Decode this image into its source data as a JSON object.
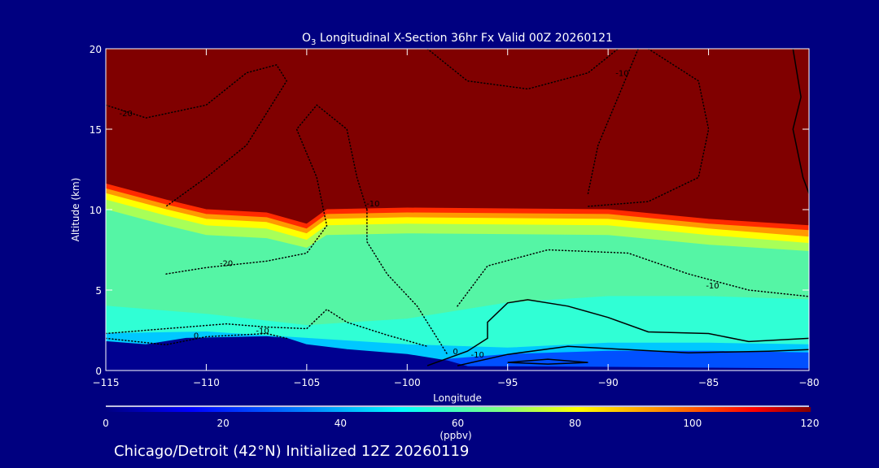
{
  "chart_data": {
    "type": "heatmap",
    "title_prefix": "O",
    "title_sub": "3",
    "title_rest": " Longitudinal X-Section 36hr  Fx Valid 00Z 20260121",
    "xlabel": "Longitude",
    "ylabel": "Altitude (km)",
    "xlim": [
      -115,
      -80
    ],
    "ylim": [
      0,
      20
    ],
    "xticks": [
      -115,
      -110,
      -105,
      -100,
      -95,
      -90,
      -85,
      -80
    ],
    "xtick_labels": [
      "−115",
      "−110",
      "−105",
      "−100",
      "−95",
      "−90",
      "−85",
      "−80"
    ],
    "yticks": [
      0,
      5,
      10,
      15,
      20
    ],
    "ytick_labels": [
      "0",
      "5",
      "10",
      "15",
      "20"
    ],
    "colorbar": {
      "label": "(ppbv)",
      "range": [
        0,
        120
      ],
      "ticks": [
        "0",
        "20",
        "40",
        "60",
        "80",
        "100",
        "120"
      ]
    },
    "footer": "Chicago/Detroit (42°N) Initialized 12Z 20260119",
    "background_color": "#800000",
    "layers": [
      {
        "color": "#ff2a00",
        "top": [
          [
            -115,
            11.6
          ],
          [
            -112,
            10.6
          ],
          [
            -110,
            10.0
          ],
          [
            -107,
            9.8
          ],
          [
            -105,
            9.1
          ],
          [
            -104,
            10.0
          ],
          [
            -100,
            10.1
          ],
          [
            -90,
            10.0
          ],
          [
            -85,
            9.4
          ],
          [
            -80,
            9.0
          ]
        ]
      },
      {
        "color": "#ff9a00",
        "top": [
          [
            -115,
            11.3
          ],
          [
            -112,
            10.3
          ],
          [
            -110,
            9.7
          ],
          [
            -107,
            9.5
          ],
          [
            -105,
            8.8
          ],
          [
            -104,
            9.7
          ],
          [
            -100,
            9.8
          ],
          [
            -90,
            9.7
          ],
          [
            -85,
            9.1
          ],
          [
            -80,
            8.7
          ]
        ]
      },
      {
        "color": "#ffff00",
        "top": [
          [
            -115,
            11.0
          ],
          [
            -112,
            10.0
          ],
          [
            -110,
            9.4
          ],
          [
            -107,
            9.2
          ],
          [
            -105,
            8.5
          ],
          [
            -104,
            9.4
          ],
          [
            -100,
            9.5
          ],
          [
            -90,
            9.4
          ],
          [
            -85,
            8.8
          ],
          [
            -80,
            8.3
          ]
        ]
      },
      {
        "color": "#a8ff58",
        "top": [
          [
            -115,
            10.6
          ],
          [
            -112,
            9.6
          ],
          [
            -110,
            9.0
          ],
          [
            -107,
            8.8
          ],
          [
            -105,
            8.1
          ],
          [
            -104,
            9.0
          ],
          [
            -100,
            9.1
          ],
          [
            -90,
            9.0
          ],
          [
            -85,
            8.4
          ],
          [
            -80,
            7.9
          ]
        ]
      },
      {
        "color": "#55f5a5",
        "top": [
          [
            -115,
            10.0
          ],
          [
            -112,
            9.0
          ],
          [
            -110,
            8.4
          ],
          [
            -107,
            8.2
          ],
          [
            -105,
            7.6
          ],
          [
            -104,
            8.4
          ],
          [
            -100,
            8.5
          ],
          [
            -90,
            8.4
          ],
          [
            -85,
            7.8
          ],
          [
            -80,
            7.4
          ]
        ]
      },
      {
        "color": "#30ffd5",
        "top": [
          [
            -115,
            4.0
          ],
          [
            -110,
            3.5
          ],
          [
            -105,
            2.8
          ],
          [
            -100,
            3.2
          ],
          [
            -95,
            4.2
          ],
          [
            -90,
            4.6
          ],
          [
            -85,
            4.6
          ],
          [
            -80,
            4.4
          ]
        ]
      },
      {
        "color": "#00c8ff",
        "top": [
          [
            -115,
            2.3
          ],
          [
            -110,
            2.4
          ],
          [
            -105,
            2.0
          ],
          [
            -100,
            1.6
          ],
          [
            -95,
            1.4
          ],
          [
            -90,
            1.7
          ],
          [
            -85,
            1.7
          ],
          [
            -80,
            1.6
          ]
        ]
      },
      {
        "color": "#0050ff",
        "top": [
          [
            -115,
            0
          ],
          [
            -100,
            0
          ],
          [
            -98,
            0.7
          ],
          [
            -95,
            1.0
          ],
          [
            -90,
            1.2
          ],
          [
            -85,
            1.2
          ],
          [
            -80,
            1.1
          ]
        ]
      },
      {
        "color": "#000090",
        "top": [
          [
            -115,
            1.8
          ],
          [
            -113,
            1.6
          ],
          [
            -111,
            2.0
          ],
          [
            -107,
            2.1
          ],
          [
            -106,
            2.0
          ],
          [
            -105,
            1.6
          ],
          [
            -103,
            1.3
          ],
          [
            -100,
            1.0
          ],
          [
            -98,
            0.6
          ],
          [
            -97,
            0.25
          ],
          [
            -90,
            0.2
          ],
          [
            -80,
            0.1
          ]
        ]
      }
    ],
    "contours": [
      {
        "label": "-20",
        "style": "dotted",
        "label_at": [
          -114,
          15.8
        ],
        "points": [
          [
            -115,
            16.5
          ],
          [
            -113,
            15.7
          ],
          [
            -110,
            16.5
          ],
          [
            -108,
            18.5
          ],
          [
            -106.5,
            19
          ],
          [
            -106,
            18
          ],
          [
            -107,
            16
          ],
          [
            -108,
            14
          ],
          [
            -110,
            12
          ],
          [
            -112,
            10.2
          ]
        ]
      },
      {
        "label": "-20",
        "style": "dotted",
        "label_at": [
          -109,
          6.5
        ],
        "points": [
          [
            -112,
            6.0
          ],
          [
            -110,
            6.4
          ],
          [
            -107,
            6.8
          ],
          [
            -105,
            7.3
          ],
          [
            -104,
            9.0
          ],
          [
            -104.5,
            12
          ],
          [
            -105.5,
            15
          ],
          [
            -104.5,
            16.5
          ],
          [
            -103,
            15
          ],
          [
            -102.5,
            12
          ],
          [
            -102,
            10
          ]
        ]
      },
      {
        "label": "-10",
        "style": "dotted",
        "label_at": [
          -101.7,
          10.2
        ],
        "points": [
          [
            -102,
            10
          ],
          [
            -102,
            8
          ],
          [
            -101,
            6
          ],
          [
            -99.5,
            4
          ],
          [
            -98.5,
            2
          ],
          [
            -98,
            1
          ]
        ]
      },
      {
        "label": "-10",
        "style": "dotted",
        "label_at": [
          -89.3,
          18.3
        ],
        "points": [
          [
            -91,
            11
          ],
          [
            -90.5,
            14
          ],
          [
            -89.5,
            17
          ],
          [
            -88.5,
            20
          ]
        ]
      },
      {
        "label": "",
        "style": "dotted",
        "label_at": [
          -95,
          18
        ],
        "points": [
          [
            -99,
            20
          ],
          [
            -97,
            18
          ],
          [
            -94,
            17.5
          ],
          [
            -91,
            18.5
          ],
          [
            -89.5,
            20
          ]
        ]
      },
      {
        "label": "",
        "style": "dotted",
        "label_at": [
          -85,
          16
        ],
        "points": [
          [
            -88,
            20
          ],
          [
            -85.5,
            18
          ],
          [
            -85,
            15
          ],
          [
            -85.5,
            12
          ],
          [
            -88,
            10.5
          ],
          [
            -91,
            10.2
          ]
        ]
      },
      {
        "label": "-10",
        "style": "dotted",
        "label_at": [
          -84.8,
          5.1
        ],
        "points": [
          [
            -97.5,
            4
          ],
          [
            -96,
            6.5
          ],
          [
            -93,
            7.5
          ],
          [
            -89,
            7.3
          ],
          [
            -86,
            6
          ],
          [
            -83,
            5
          ],
          [
            -80,
            4.6
          ]
        ]
      },
      {
        "label": "-10",
        "style": "dotted",
        "label_at": [
          -107.2,
          2.3
        ],
        "points": [
          [
            -115,
            2.3
          ],
          [
            -112,
            2.6
          ],
          [
            -109,
            2.9
          ],
          [
            -107,
            2.7
          ],
          [
            -105,
            2.6
          ],
          [
            -104,
            3.8
          ],
          [
            -103,
            3.0
          ],
          [
            -101,
            2.2
          ],
          [
            -99,
            1.5
          ]
        ]
      },
      {
        "label": "0",
        "style": "dotted",
        "label_at": [
          -110.5,
          2.0
        ],
        "points": [
          [
            -115,
            2.0
          ],
          [
            -112,
            1.6
          ],
          [
            -110,
            2.1
          ],
          [
            -107,
            2.3
          ],
          [
            -106,
            2.0
          ]
        ]
      },
      {
        "label": "0",
        "style": "solid",
        "label_at": [
          -97.6,
          1.0
        ],
        "points": [
          [
            -99,
            0.3
          ],
          [
            -97,
            1.2
          ],
          [
            -96,
            2.0
          ],
          [
            -96,
            3.0
          ],
          [
            -95,
            4.2
          ],
          [
            -94,
            4.4
          ],
          [
            -92,
            4.0
          ],
          [
            -90,
            3.3
          ],
          [
            -88,
            2.4
          ],
          [
            -85,
            2.3
          ],
          [
            -83,
            1.8
          ],
          [
            -80,
            2.0
          ]
        ]
      },
      {
        "label": "-10",
        "style": "solid",
        "label_at": [
          -96.5,
          0.8
        ],
        "points": [
          [
            -97.5,
            0.3
          ],
          [
            -95,
            1.0
          ],
          [
            -92,
            1.5
          ],
          [
            -89,
            1.3
          ],
          [
            -86,
            1.1
          ],
          [
            -82,
            1.2
          ],
          [
            -80,
            1.3
          ]
        ]
      },
      {
        "label": "",
        "style": "solid",
        "label_at": [
          -93,
          0.5
        ],
        "points": [
          [
            -95,
            0.5
          ],
          [
            -93,
            0.7
          ],
          [
            -91,
            0.5
          ],
          [
            -93,
            0.4
          ],
          [
            -95,
            0.5
          ]
        ]
      },
      {
        "label": "",
        "style": "solid",
        "label_at": [
          -80.5,
          18
        ],
        "points": [
          [
            -80.8,
            20
          ],
          [
            -80.4,
            17
          ],
          [
            -80.8,
            15
          ],
          [
            -80.3,
            12
          ],
          [
            -80,
            11
          ]
        ]
      }
    ]
  }
}
